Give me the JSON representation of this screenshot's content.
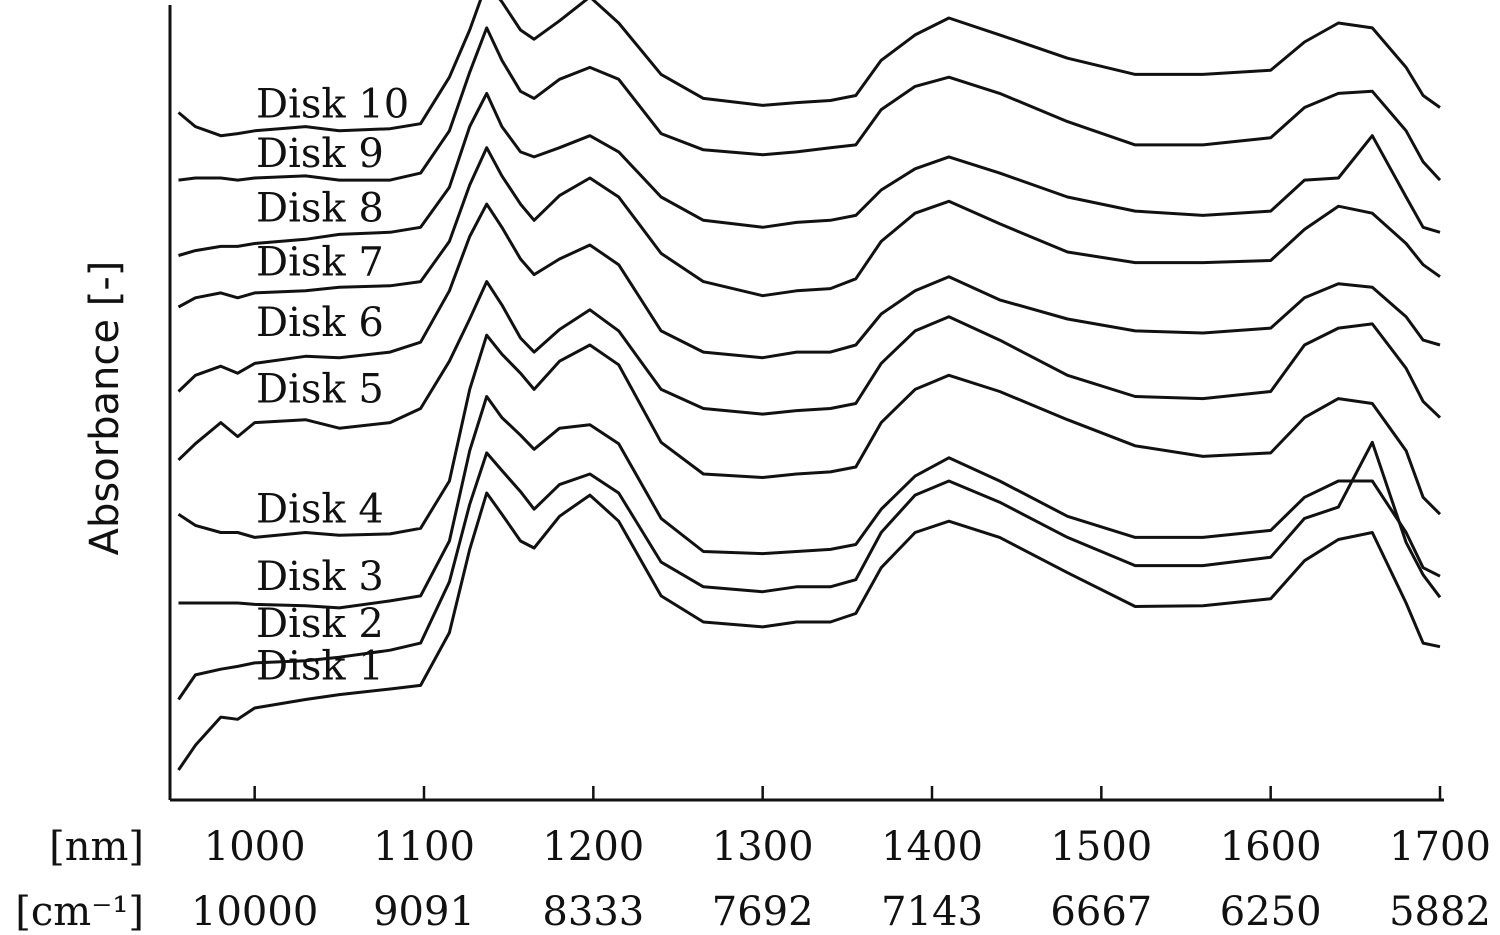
{
  "chart_data": {
    "type": "line",
    "title": "",
    "ylabel": "Absorbance  [-]",
    "x_unit_labels": {
      "nm": "[nm]",
      "wavenumber": "[cm⁻¹]"
    },
    "xlim": [
      950,
      1700
    ],
    "ylim": [
      0,
      10.5
    ],
    "grid": false,
    "legend": "none",
    "x_ticks": [
      1000,
      1100,
      1200,
      1300,
      1400,
      1500,
      1600,
      1700
    ],
    "x_tick_labels_nm": [
      "1000",
      "1100",
      "1200",
      "1300",
      "1400",
      "1500",
      "1600",
      "1700"
    ],
    "x_tick_labels_wavenumber": [
      "10000",
      "9091",
      "8333",
      "7692",
      "7143",
      "6667",
      "6250",
      "5882"
    ],
    "x": [
      955,
      965,
      980,
      990,
      1000,
      1030,
      1050,
      1080,
      1098,
      1115,
      1127,
      1137,
      1146,
      1157,
      1165,
      1180,
      1198,
      1215,
      1240,
      1265,
      1300,
      1320,
      1340,
      1355,
      1370,
      1390,
      1410,
      1440,
      1480,
      1520,
      1560,
      1600,
      1620,
      1640,
      1660,
      1680,
      1690,
      1700
    ],
    "series": [
      {
        "name": "Disk 1",
        "values": [
          0.0,
          0.35,
          0.75,
          0.72,
          0.88,
          1.0,
          1.07,
          1.15,
          1.2,
          1.95,
          3.13,
          3.93,
          3.63,
          3.25,
          3.15,
          3.6,
          3.9,
          3.53,
          2.47,
          2.1,
          2.03,
          2.1,
          2.1,
          2.22,
          2.87,
          3.37,
          3.53,
          3.3,
          2.8,
          2.32,
          2.33,
          2.43,
          2.97,
          3.27,
          3.37,
          2.37,
          1.8,
          1.75
        ]
      },
      {
        "name": "Disk 2",
        "values": [
          1.0,
          1.35,
          1.43,
          1.47,
          1.52,
          1.55,
          1.6,
          1.7,
          1.8,
          2.67,
          3.77,
          4.5,
          4.25,
          3.95,
          3.7,
          4.05,
          4.2,
          3.93,
          2.95,
          2.6,
          2.53,
          2.6,
          2.6,
          2.7,
          3.37,
          3.9,
          4.1,
          3.8,
          3.3,
          2.9,
          2.9,
          3.02,
          3.57,
          3.73,
          4.65,
          3.23,
          2.77,
          2.45
        ]
      },
      {
        "name": "Disk 3",
        "values": [
          2.37,
          2.37,
          2.37,
          2.37,
          2.35,
          2.33,
          2.3,
          2.4,
          2.47,
          3.25,
          4.53,
          5.3,
          5.0,
          4.75,
          4.55,
          4.85,
          4.9,
          4.63,
          3.57,
          3.1,
          3.07,
          3.1,
          3.13,
          3.2,
          3.7,
          4.17,
          4.43,
          4.1,
          3.6,
          3.3,
          3.3,
          3.4,
          3.87,
          4.1,
          4.1,
          3.37,
          2.87,
          2.75
        ]
      },
      {
        "name": "Disk 4",
        "values": [
          3.63,
          3.47,
          3.37,
          3.37,
          3.3,
          3.37,
          3.33,
          3.35,
          3.43,
          4.1,
          5.4,
          6.17,
          5.9,
          5.63,
          5.4,
          5.8,
          6.03,
          5.75,
          4.65,
          4.2,
          4.15,
          4.2,
          4.23,
          4.3,
          4.93,
          5.4,
          5.6,
          5.37,
          4.97,
          4.6,
          4.45,
          4.5,
          5.0,
          5.27,
          5.2,
          4.53,
          3.87,
          3.63
        ]
      },
      {
        "name": "Disk 5",
        "values": [
          4.4,
          4.63,
          4.93,
          4.73,
          4.93,
          4.97,
          4.85,
          4.93,
          5.13,
          5.8,
          6.4,
          6.93,
          6.6,
          6.13,
          5.93,
          6.25,
          6.53,
          6.23,
          5.4,
          5.13,
          5.05,
          5.1,
          5.13,
          5.2,
          5.77,
          6.23,
          6.43,
          6.1,
          5.6,
          5.3,
          5.27,
          5.37,
          6.03,
          6.27,
          6.33,
          5.7,
          5.23,
          5.0
        ]
      },
      {
        "name": "Disk 6",
        "values": [
          5.37,
          5.6,
          5.73,
          5.63,
          5.77,
          5.87,
          5.85,
          5.93,
          6.07,
          6.8,
          7.57,
          8.03,
          7.7,
          7.25,
          7.03,
          7.25,
          7.45,
          7.17,
          6.23,
          5.93,
          5.85,
          5.93,
          5.93,
          6.03,
          6.47,
          6.8,
          7.0,
          6.67,
          6.4,
          6.23,
          6.2,
          6.27,
          6.7,
          6.9,
          6.85,
          6.43,
          6.1,
          6.03
        ]
      },
      {
        "name": "Disk 7",
        "values": [
          6.57,
          6.7,
          6.77,
          6.7,
          6.77,
          6.8,
          6.85,
          6.87,
          6.93,
          7.5,
          8.3,
          8.83,
          8.43,
          8.03,
          7.8,
          8.15,
          8.4,
          8.13,
          7.33,
          6.93,
          6.73,
          6.8,
          6.83,
          6.97,
          7.5,
          7.9,
          8.07,
          7.75,
          7.35,
          7.2,
          7.2,
          7.23,
          7.67,
          8.0,
          7.9,
          7.47,
          7.17,
          7.0
        ]
      },
      {
        "name": "Disk 8",
        "values": [
          7.3,
          7.37,
          7.43,
          7.43,
          7.47,
          7.53,
          7.6,
          7.63,
          7.7,
          8.27,
          9.13,
          9.6,
          9.13,
          8.77,
          8.7,
          8.83,
          9.0,
          8.77,
          8.13,
          7.8,
          7.7,
          7.77,
          7.8,
          7.87,
          8.23,
          8.53,
          8.7,
          8.47,
          8.13,
          7.93,
          7.87,
          7.93,
          8.37,
          8.4,
          9.0,
          8.13,
          7.7,
          7.63
        ]
      },
      {
        "name": "Disk 9",
        "values": [
          8.37,
          8.4,
          8.4,
          8.37,
          8.4,
          8.43,
          8.37,
          8.37,
          8.47,
          9.07,
          9.9,
          10.53,
          10.07,
          9.63,
          9.53,
          9.8,
          9.97,
          9.8,
          9.03,
          8.8,
          8.73,
          8.77,
          8.83,
          8.87,
          9.37,
          9.7,
          9.83,
          9.6,
          9.2,
          8.87,
          8.87,
          8.97,
          9.4,
          9.6,
          9.63,
          9.07,
          8.63,
          8.37
        ]
      },
      {
        "name": "Disk 10",
        "values": [
          9.33,
          9.13,
          9.0,
          9.03,
          9.07,
          9.13,
          9.07,
          9.1,
          9.17,
          9.83,
          10.5,
          11.17,
          10.9,
          10.5,
          10.37,
          10.63,
          10.97,
          10.6,
          9.87,
          9.53,
          9.43,
          9.47,
          9.5,
          9.57,
          10.07,
          10.43,
          10.67,
          10.43,
          10.1,
          9.87,
          9.87,
          9.93,
          10.33,
          10.6,
          10.53,
          9.97,
          9.57,
          9.4
        ]
      }
    ]
  }
}
